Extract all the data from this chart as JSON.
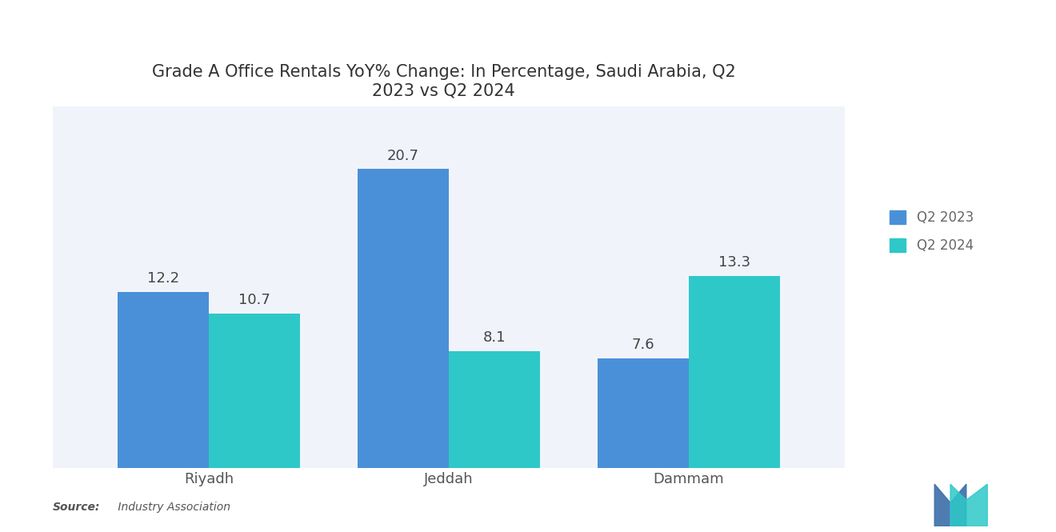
{
  "title": "Grade A Office Rentals YoY% Change: In Percentage, Saudi Arabia, Q2\n2023 vs Q2 2024",
  "categories": [
    "Riyadh",
    "Jeddah",
    "Dammam"
  ],
  "q2_2023": [
    12.2,
    20.7,
    7.6
  ],
  "q2_2024": [
    10.7,
    8.1,
    13.3
  ],
  "color_2023": "#4A90D9",
  "color_2024": "#2EC8C8",
  "legend_labels": [
    "Q2 2023",
    "Q2 2024"
  ],
  "source_bold": "Source:",
  "source_rest": " Industry Association",
  "ylim": [
    0,
    25
  ],
  "bar_width": 0.38,
  "title_fontsize": 15,
  "label_fontsize": 13,
  "tick_fontsize": 13,
  "legend_fontsize": 12,
  "background_color": "#ffffff",
  "plot_bg_color": "#f0f4fa"
}
